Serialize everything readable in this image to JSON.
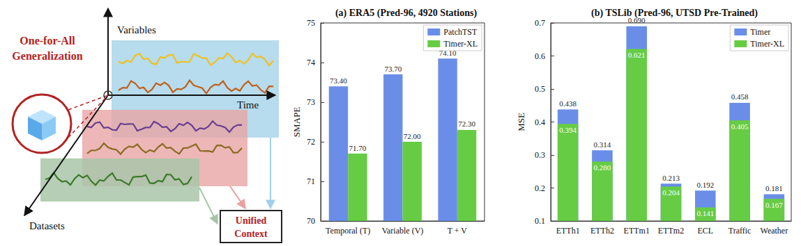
{
  "diagram": {
    "axes": {
      "y": "Variables",
      "x": "Time",
      "z": "Datasets"
    },
    "callout": [
      "One-for-All",
      "Generalization"
    ],
    "target": [
      "Unified",
      "Context"
    ]
  },
  "chart_data": [
    {
      "type": "bar",
      "title": "(a) ERA5 (Pred-96, 4920 Stations)",
      "ylabel": "SMAPE",
      "categories": [
        "Temporal (T)",
        "Variable (V)",
        "T + V"
      ],
      "series": [
        {
          "name": "PatchTST",
          "color": "#6a8ee8",
          "values": [
            73.4,
            73.7,
            74.1
          ],
          "value_labels": [
            "73.40",
            "73.70",
            "74.10"
          ]
        },
        {
          "name": "Timer-XL",
          "color": "#66cc44",
          "values": [
            71.7,
            72.0,
            72.3
          ],
          "value_labels": [
            "71.70",
            "72.00",
            "72.30"
          ]
        }
      ],
      "ylim": [
        70,
        75
      ],
      "yticks": [
        70,
        71,
        72,
        73,
        74,
        75
      ],
      "grid": false,
      "legend": "upper right",
      "data_labels": true
    },
    {
      "type": "bar",
      "title": "(b) TSLib (Pred-96, UTSD Pre-Trained)",
      "ylabel": "MSE",
      "categories": [
        "ETTh1",
        "ETTh2",
        "ETTm1",
        "ETTm2",
        "ECL",
        "Traffic",
        "Weather"
      ],
      "series": [
        {
          "name": "Timer",
          "color": "#6a8ee8",
          "values": [
            0.438,
            0.314,
            0.69,
            0.213,
            0.192,
            0.458,
            0.181
          ],
          "value_labels": [
            "0.438",
            "0.314",
            "0.690",
            "0.213",
            "0.192",
            "0.458",
            "0.181"
          ]
        },
        {
          "name": "Timer-XL",
          "color": "#66cc44",
          "values": [
            0.394,
            0.28,
            0.621,
            0.204,
            0.141,
            0.405,
            0.167
          ],
          "value_labels": [
            "0.394",
            "0.280",
            "0.621",
            "0.204",
            "0.141",
            "0.405",
            "0.167"
          ]
        }
      ],
      "ylim": [
        0.1,
        0.7
      ],
      "yticks": [
        0.1,
        0.2,
        0.3,
        0.4,
        0.5,
        0.6,
        0.7
      ],
      "grid": false,
      "legend": "upper right",
      "data_labels": true
    }
  ]
}
